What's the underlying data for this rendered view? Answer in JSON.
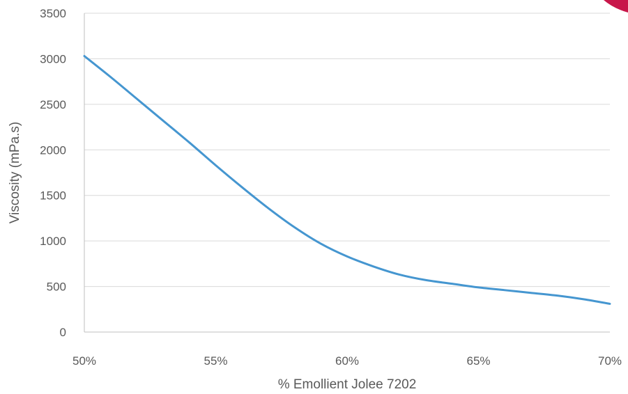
{
  "chart_data": {
    "type": "line",
    "title": "",
    "xlabel": "% Emollient Jolee 7202",
    "ylabel": "Viscosity (mPa.s)",
    "x_tick_labels": [
      "50%",
      "55%",
      "60%",
      "65%",
      "70%"
    ],
    "x_ticks": [
      50,
      55,
      60,
      65,
      70
    ],
    "y_ticks": [
      0,
      500,
      1000,
      1500,
      2000,
      2500,
      3000,
      3500
    ],
    "xlim": [
      50,
      70
    ],
    "ylim": [
      0,
      3500
    ],
    "grid": true,
    "legend": "none",
    "series": [
      {
        "color": "#4596d0",
        "x": [
          50,
          51,
          52,
          53,
          54,
          55,
          56,
          57,
          58,
          59,
          60,
          61,
          62,
          63,
          64,
          65,
          66,
          67,
          68,
          69,
          70
        ],
        "y": [
          3030,
          2800,
          2560,
          2320,
          2080,
          1830,
          1590,
          1360,
          1150,
          970,
          830,
          720,
          630,
          570,
          530,
          490,
          460,
          430,
          400,
          360,
          310
        ]
      }
    ]
  },
  "decor": {
    "corner_accent_color": "#c8174a"
  }
}
